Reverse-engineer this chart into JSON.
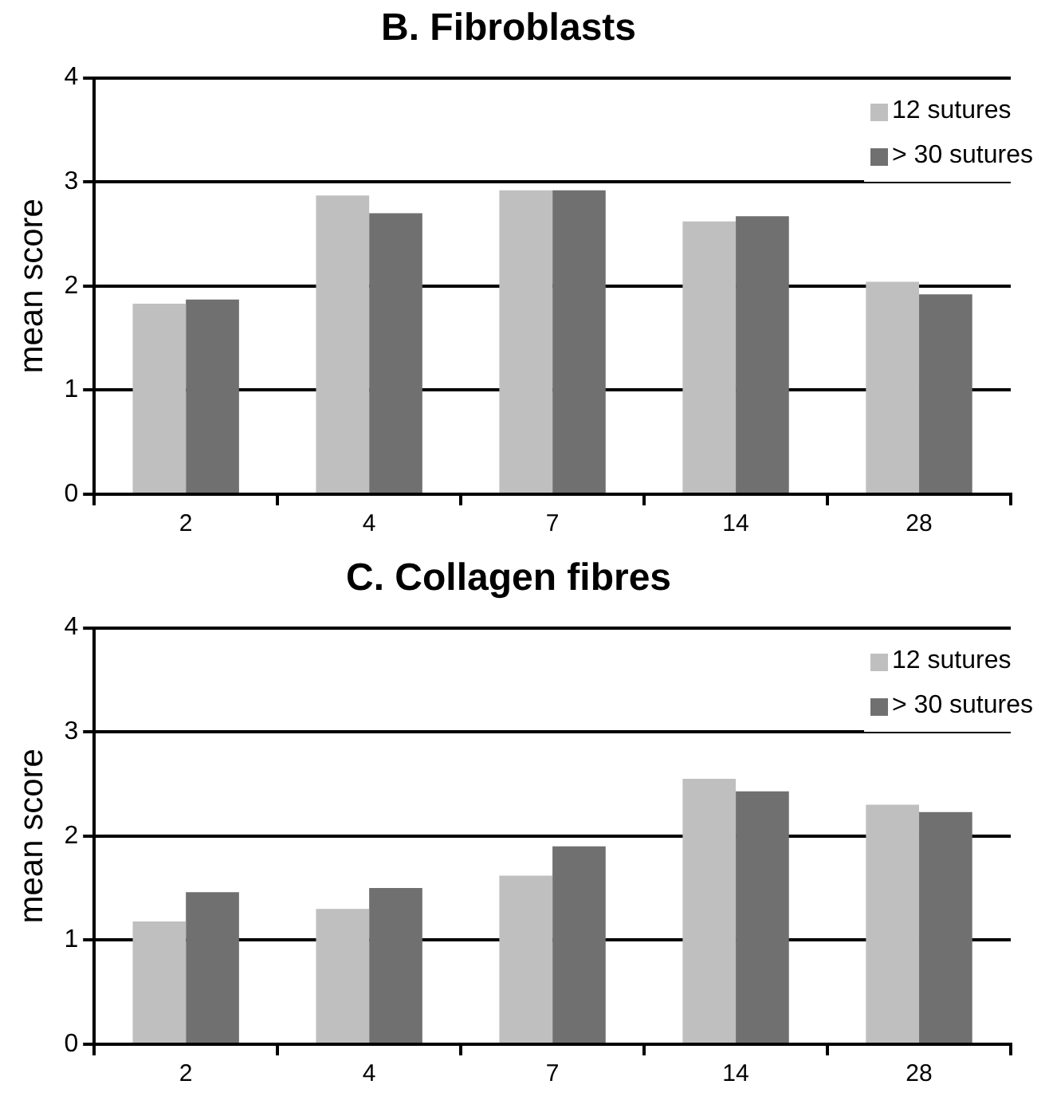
{
  "chart_data": [
    {
      "type": "bar",
      "title": "B. Fibroblasts",
      "ylabel": "mean score",
      "categories": [
        "2",
        "4",
        "7",
        "14",
        "28"
      ],
      "series": [
        {
          "name": "12 sutures",
          "color": "#bfbfbf",
          "values": [
            1.83,
            2.87,
            2.92,
            2.62,
            2.04
          ]
        },
        {
          "name": "> 30 sutures",
          "color": "#707070",
          "values": [
            1.87,
            2.7,
            2.92,
            2.67,
            1.92
          ]
        }
      ],
      "ylim": [
        0,
        4
      ],
      "yticks": [
        0,
        1,
        2,
        3,
        4
      ],
      "grid": "y",
      "legend": "top right"
    },
    {
      "type": "bar",
      "title": "C. Collagen fibres",
      "ylabel": "mean score",
      "categories": [
        "2",
        "4",
        "7",
        "14",
        "28"
      ],
      "series": [
        {
          "name": "12 sutures",
          "color": "#bfbfbf",
          "values": [
            1.18,
            1.3,
            1.62,
            2.55,
            2.3
          ]
        },
        {
          "name": "> 30 sutures",
          "color": "#707070",
          "values": [
            1.46,
            1.5,
            1.9,
            2.43,
            2.23
          ]
        }
      ],
      "ylim": [
        0,
        4
      ],
      "yticks": [
        0,
        1,
        2,
        3,
        4
      ],
      "grid": "y",
      "legend": "top right"
    }
  ]
}
